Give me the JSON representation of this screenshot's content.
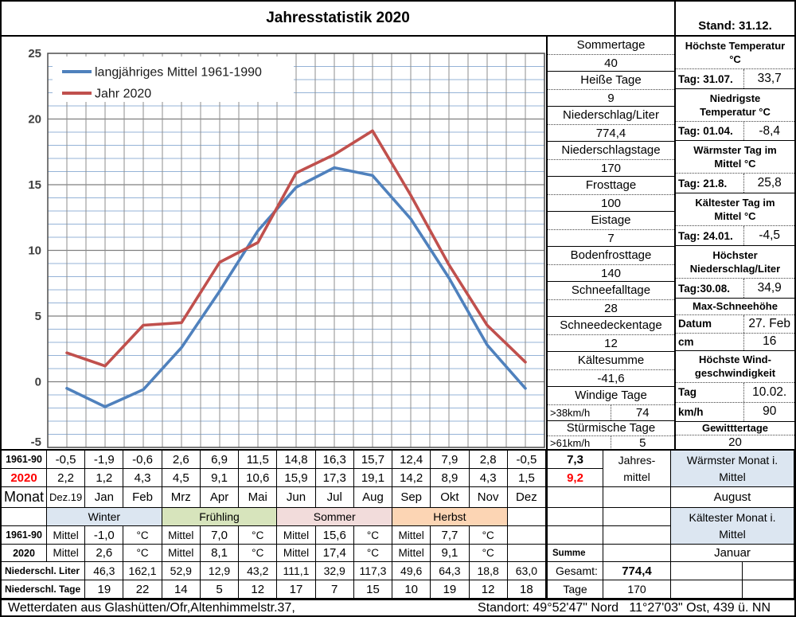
{
  "title": "Jahresstatistik 2020",
  "stand": "Stand: 31.12.",
  "chart_data": {
    "type": "line",
    "x_categories": [
      "Dez.19",
      "Jan",
      "Feb",
      "Mrz",
      "Apr",
      "Mai",
      "Jun",
      "Jul",
      "Aug",
      "Sep",
      "Okt",
      "Nov",
      "Dez"
    ],
    "ylim": [
      -5,
      25
    ],
    "y_major_step": 5,
    "y_minor_step": 1,
    "legend_position": "top-left",
    "grid": {
      "minor_color": "#95B3D7",
      "major_color": "#7F7F7F",
      "vertical_color": "#8C8C8C",
      "border_color": "#4D4D4D"
    },
    "series": [
      {
        "name": "langjähriges Mittel 1961-1990",
        "color": "#4F81BD",
        "values": [
          -0.5,
          -1.9,
          -0.6,
          2.6,
          6.9,
          11.5,
          14.8,
          16.3,
          15.7,
          12.4,
          7.9,
          2.8,
          -0.5
        ]
      },
      {
        "name": "Jahr 2020",
        "color": "#C0504D",
        "values": [
          2.2,
          1.2,
          4.3,
          4.5,
          9.1,
          10.6,
          15.9,
          17.3,
          19.1,
          14.2,
          8.9,
          4.3,
          1.5
        ]
      }
    ]
  },
  "left_stats": [
    {
      "label": "Sommertage",
      "value": "40"
    },
    {
      "label": "Heiße Tage",
      "value": "9"
    },
    {
      "label": "Niederschlag/Liter",
      "value": "774,4"
    },
    {
      "label": "Niederschlagstage",
      "value": "170"
    },
    {
      "label": "Frosttage",
      "value": "100"
    },
    {
      "label": "Eistage",
      "value": "7"
    },
    {
      "label": "Bodenfrosttage",
      "value": "140"
    },
    {
      "label": "Schneefalltage",
      "value": "28"
    },
    {
      "label": "Schneedeckentage",
      "value": "12"
    },
    {
      "label": "Kältesumme",
      "value": "-41,6"
    },
    {
      "label": "Windige Tage",
      "sub": ">38km/h",
      "value": "74"
    },
    {
      "label": "Stürmische Tage",
      "sub": ">61km/h",
      "value": "5"
    }
  ],
  "right_stats": [
    {
      "label": "Höchste Temperatur\n°C",
      "rows": [
        [
          "Tag: 31.07.",
          "33,7"
        ]
      ]
    },
    {
      "label": "Niedrigste\nTemperatur °C",
      "rows": [
        [
          "Tag: 01.04.",
          "-8,4"
        ]
      ]
    },
    {
      "label": "Wärmster Tag im\nMittel °C",
      "rows": [
        [
          "Tag: 21.8.",
          "25,8"
        ]
      ]
    },
    {
      "label": "Kältester Tag im\nMittel °C",
      "rows": [
        [
          "Tag: 24.01.",
          "-4,5"
        ]
      ]
    },
    {
      "label": "Höchster\nNiederschlag/Liter",
      "rows": [
        [
          "Tag:30.08.",
          "34,9"
        ]
      ]
    },
    {
      "label": "Max-Schneehöhe",
      "rows": [
        [
          "Datum",
          "27. Feb"
        ],
        [
          "cm",
          "16"
        ]
      ]
    },
    {
      "label": "Höchste Wind-\ngeschwindigkeit",
      "rows": [
        [
          "Tag",
          "10.02."
        ],
        [
          "km/h",
          "90"
        ]
      ]
    },
    {
      "label": "Gewitttertage",
      "value": "20"
    }
  ],
  "monthly": {
    "row_headers": [
      "1961-90",
      "2020",
      "Monat"
    ],
    "months": [
      "Dez.19",
      "Jan",
      "Feb",
      "Mrz",
      "Apr",
      "Mai",
      "Jun",
      "Jul",
      "Aug",
      "Sep",
      "Okt",
      "Nov",
      "Dez"
    ],
    "r1961_90": [
      "-0,5",
      "-1,9",
      "-0,6",
      "2,6",
      "6,9",
      "11,5",
      "14,8",
      "16,3",
      "15,7",
      "12,4",
      "7,9",
      "2,8",
      "-0,5"
    ],
    "r2020": [
      "2,2",
      "1,2",
      "4,3",
      "4,5",
      "9,1",
      "10,6",
      "15,9",
      "17,3",
      "19,1",
      "14,2",
      "8,9",
      "4,3",
      "1,5"
    ]
  },
  "seasons": {
    "bands": [
      {
        "name": "Winter",
        "color": "#DCE6F1"
      },
      {
        "name": "Frühling",
        "color": "#D7E4BC"
      },
      {
        "name": "Sommer",
        "color": "#F2DCDB"
      },
      {
        "name": "Herbst",
        "color": "#FCD5B4"
      }
    ],
    "row_headers": [
      "1961-90",
      "2020"
    ],
    "mittel_label": "Mittel",
    "unit": "°C",
    "mittel_1961": [
      "-1,0",
      "7,0",
      "15,6",
      "7,7"
    ],
    "mittel_2020": [
      "2,6",
      "8,1",
      "17,4",
      "9,1"
    ]
  },
  "precip": {
    "liter_label": "Niederschl. Liter",
    "tage_label": "Niederschl. Tage",
    "liter": [
      "46,3",
      "162,1",
      "52,9",
      "12,9",
      "43,2",
      "111,1",
      "32,9",
      "117,3",
      "49,6",
      "64,3",
      "18,8",
      "63,0"
    ],
    "tage": [
      "19",
      "22",
      "14",
      "5",
      "12",
      "17",
      "7",
      "15",
      "10",
      "19",
      "12",
      "18"
    ],
    "gesamt_label": "Gesamt:",
    "gesamt": "774,4",
    "tage_total_label": "Tage",
    "tage_total": "170"
  },
  "annual_summary": {
    "v1961": "7,3",
    "v2020": "9,2",
    "jahresmittel_label": "Jahres-\nmittel",
    "summe_label": "Summe",
    "warm_label": "Wärmster Monat i.\nMittel",
    "warm_value": "August",
    "cold_label": "Kältester Monat i.\nMittel",
    "cold_value": "Januar",
    "highlight_color": "#DCE6F1"
  },
  "footer": {
    "left": "Wetterdaten aus Glashütten/Ofr,Altenhimmelstr.37,",
    "right": "Standort: 49°52'47\" Nord   11°27'03\" Ost, 439 ü. NN"
  }
}
